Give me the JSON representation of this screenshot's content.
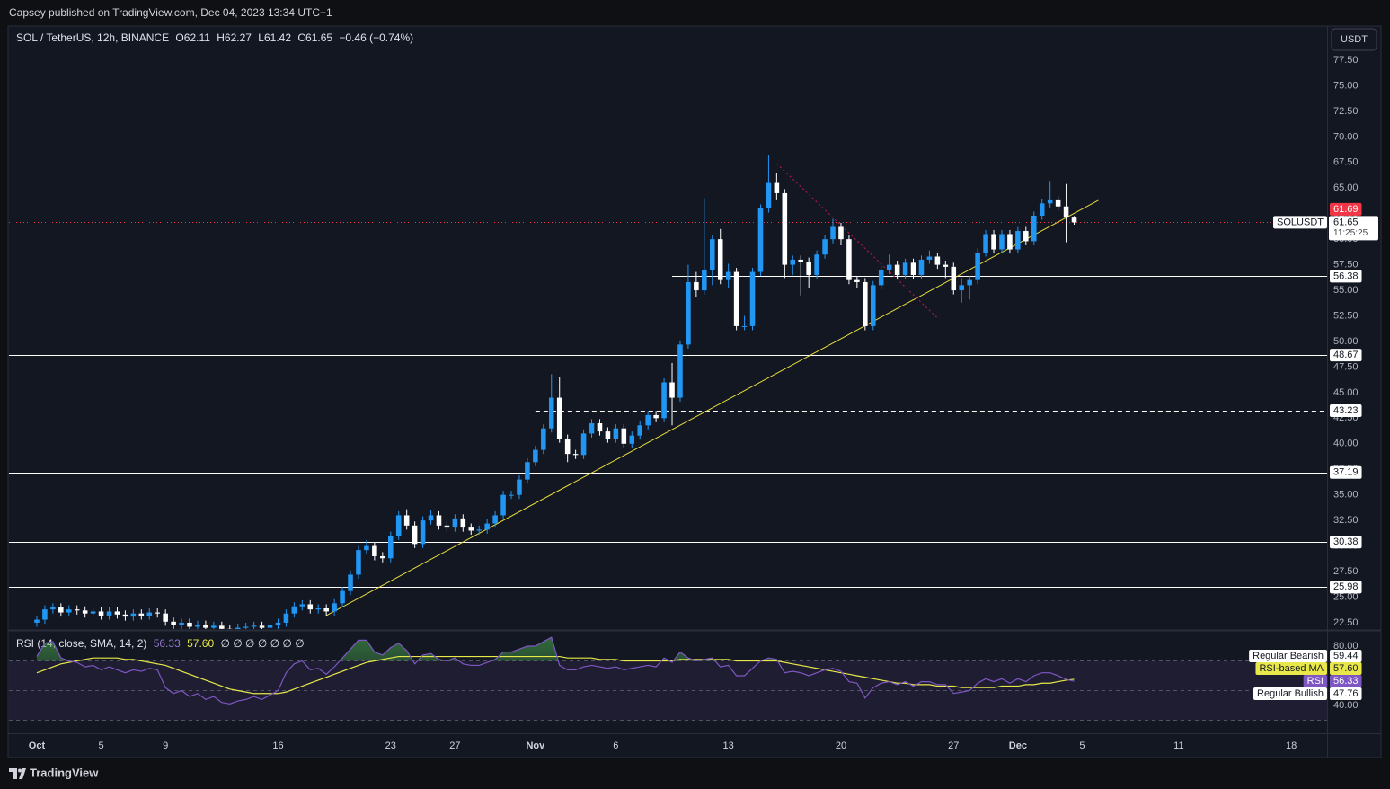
{
  "header": {
    "publisher_line": "Capsey published on TradingView.com, Dec 04, 2023 13:34 UTC+1",
    "brand": "TradingView"
  },
  "chart_data": [
    {
      "type": "candlestick",
      "symbol": "SOL / TetherUS, 12h, BINANCE",
      "ohlc_letters": [
        "O",
        "H",
        "L",
        "C"
      ],
      "change": "−0.46 (−0.74%)",
      "currency": "USDT",
      "symbol_label": "SOLUSDT",
      "countdown": "11:25:25",
      "up_color": "#2196f3",
      "down_color": "#ffffff",
      "last_price_color": "#f23645",
      "open": [
        22.5,
        22.8,
        23.8,
        24,
        23.5,
        23.8,
        23.7,
        23.4,
        23.6,
        23.2,
        23.6,
        23.3,
        23.1,
        23.4,
        23.2,
        23.5,
        23.4,
        22.6,
        22.3,
        22.5,
        22.1,
        22.3,
        22,
        22.2,
        21.9,
        21.8,
        22,
        22.1,
        22.2,
        22,
        22.3,
        22.5,
        23.4,
        24.1,
        24.3,
        23.8,
        23.9,
        23.6,
        24.4,
        25.6,
        27.2,
        29.6,
        30,
        29,
        28.8,
        31,
        33,
        32,
        30.2,
        32.5,
        33,
        32,
        31.8,
        32.7,
        31.8,
        31.5,
        31.6,
        32.2,
        33,
        35,
        35,
        36.5,
        38.2,
        39.4,
        41.5,
        44.5,
        40.5,
        39,
        38.9,
        41,
        42,
        41.2,
        40.5,
        41.5,
        40,
        40.8,
        41.8,
        42.8,
        42.5,
        46,
        44.5,
        49.7,
        55.8,
        55,
        57,
        60,
        56,
        56.8,
        51.5,
        51.5,
        56.8,
        63,
        65.5,
        64.5,
        57.5,
        58,
        57.8,
        56.5,
        58.5,
        60,
        61.2,
        60,
        56,
        55.8,
        51.5,
        55.5,
        57,
        57.5,
        56.5,
        57.7,
        56.5,
        58,
        58.3,
        57.5,
        57.3,
        55,
        55.5,
        56,
        58.7,
        60.5,
        59,
        60.5,
        59,
        60.8,
        59.8,
        62.3,
        63.5,
        63.8,
        63.2,
        62.11
      ],
      "high": [
        23.2,
        24.2,
        24.4,
        24.4,
        24.2,
        24.2,
        24.1,
        24,
        24,
        24,
        24,
        23.7,
        23.8,
        23.8,
        23.9,
        23.9,
        23.8,
        23,
        22.9,
        22.9,
        22.7,
        22.7,
        22.6,
        22.6,
        22.3,
        22.4,
        22.5,
        22.6,
        22.6,
        22.7,
        22.9,
        23.8,
        24.5,
        24.7,
        24.7,
        24.3,
        24.3,
        24.8,
        26,
        27.6,
        30,
        30.6,
        30.4,
        29.4,
        31.4,
        33.4,
        33.6,
        32.4,
        32.9,
        33.5,
        33.4,
        32.4,
        33.1,
        33.1,
        32.2,
        32,
        32.6,
        33.4,
        35.4,
        35.4,
        36.9,
        38.6,
        39.8,
        41.9,
        46.8,
        46.5,
        40.9,
        39.4,
        41.4,
        42.4,
        42.4,
        41.6,
        41.9,
        41.9,
        41.2,
        42.2,
        43.2,
        43.2,
        46.4,
        47.9,
        50.1,
        57.5,
        56.8,
        64,
        60.4,
        61,
        57.6,
        57.2,
        52.5,
        57.2,
        63.4,
        68.2,
        66.5,
        64.9,
        58.4,
        58.4,
        58.2,
        58.9,
        60.4,
        62,
        61.6,
        60.4,
        56.4,
        56.2,
        55.9,
        57.4,
        58.5,
        57.9,
        58.1,
        58.1,
        58.4,
        58.9,
        58.7,
        57.9,
        57.7,
        56.2,
        56.4,
        59.1,
        60.9,
        60.9,
        60.9,
        60.9,
        61.2,
        61.2,
        62.7,
        63.9,
        65.7,
        64.2,
        65.4,
        62.27
      ],
      "low": [
        22.1,
        22.4,
        23.4,
        23.1,
        23.1,
        23.3,
        23,
        23,
        22.8,
        22.8,
        22.9,
        22.7,
        22.7,
        22.8,
        22.8,
        23,
        22.2,
        21.9,
        21.9,
        21.7,
        21.7,
        21.6,
        21.6,
        21.5,
        21.4,
        21.4,
        21.6,
        21.7,
        21.6,
        21.6,
        21.9,
        22.1,
        23,
        23.7,
        23.4,
        23.4,
        23.2,
        23.2,
        24,
        25.2,
        26.8,
        29.2,
        28.6,
        28.4,
        28.4,
        30.6,
        31.6,
        29.8,
        29.8,
        32.1,
        31.6,
        31.4,
        31.4,
        31.4,
        31.1,
        31.1,
        31.2,
        31.8,
        32.6,
        34.6,
        34.6,
        36.1,
        37.8,
        39,
        41.1,
        40.1,
        38.2,
        38.5,
        38.5,
        40.6,
        40.8,
        40.1,
        40.1,
        39.6,
        39.6,
        40.4,
        41.4,
        42.1,
        42.1,
        41.8,
        44.1,
        49.3,
        54.3,
        54.6,
        55.5,
        55.6,
        55.2,
        51.1,
        51.1,
        51.1,
        56.4,
        62.6,
        63.8,
        56.2,
        56.5,
        54.5,
        55.2,
        56.1,
        58.1,
        59.6,
        59.4,
        55.6,
        55.2,
        51.1,
        51.1,
        55.1,
        56.6,
        56.1,
        56.1,
        56.1,
        56.1,
        57.6,
        57.1,
        56.2,
        54.6,
        53.8,
        54.1,
        55.6,
        58.3,
        58.6,
        58.6,
        58.6,
        58.6,
        59.4,
        59.4,
        61.9,
        63.1,
        62.8,
        59.7,
        61.42
      ],
      "close": [
        22.8,
        23.8,
        24,
        23.5,
        23.8,
        23.7,
        23.4,
        23.6,
        23.2,
        23.6,
        23.3,
        23.1,
        23.4,
        23.2,
        23.5,
        23.4,
        22.6,
        22.3,
        22.5,
        22.1,
        22.3,
        22,
        22.2,
        21.9,
        21.8,
        22,
        22.1,
        22.2,
        22,
        22.3,
        22.5,
        23.4,
        24.1,
        24.3,
        23.8,
        23.9,
        23.6,
        24.4,
        25.6,
        27.2,
        29.6,
        30,
        29,
        28.8,
        31,
        33,
        32,
        30.2,
        32.5,
        33,
        32,
        31.8,
        32.7,
        31.8,
        31.5,
        31.6,
        32.2,
        33,
        35,
        35,
        36.5,
        38.2,
        39.4,
        41.5,
        44.5,
        40.5,
        39,
        38.9,
        41,
        42,
        41.2,
        40.5,
        41.5,
        40,
        40.8,
        41.8,
        42.8,
        42.5,
        46,
        44.5,
        49.7,
        55.8,
        55,
        57,
        60,
        56,
        56.8,
        51.5,
        51.5,
        56.8,
        63,
        65.5,
        64.5,
        57.5,
        58,
        57.8,
        56.5,
        58.5,
        60,
        61.2,
        60,
        56,
        55.8,
        51.5,
        55.5,
        57,
        57.5,
        56.5,
        57.7,
        56.5,
        58,
        58.3,
        57.5,
        57.3,
        55,
        55.5,
        56,
        58.7,
        60.5,
        59,
        60.5,
        59,
        60.8,
        59.8,
        62.3,
        63.5,
        63.8,
        63.2,
        62.11,
        61.65
      ],
      "xlim": [
        -3.46,
        160.45
      ],
      "xticks": [
        {
          "value": 0,
          "label": "Oct"
        },
        {
          "value": 8,
          "label": "5"
        },
        {
          "value": 16,
          "label": "9"
        },
        {
          "value": 30,
          "label": "16"
        },
        {
          "value": 44,
          "label": "23"
        },
        {
          "value": 52,
          "label": "27"
        },
        {
          "value": 62,
          "label": "Nov"
        },
        {
          "value": 72,
          "label": "6"
        },
        {
          "value": 86,
          "label": "13"
        },
        {
          "value": 100,
          "label": "20"
        },
        {
          "value": 114,
          "label": "27"
        },
        {
          "value": 122,
          "label": "Dec"
        },
        {
          "value": 130,
          "label": "5"
        },
        {
          "value": 142,
          "label": "11"
        },
        {
          "value": 156,
          "label": "18"
        }
      ],
      "ylim": [
        21.88,
        80.75
      ],
      "yticks": [
        {
          "value": 22.5,
          "label": "22.50"
        },
        {
          "value": 25,
          "label": "25.00"
        },
        {
          "value": 27.5,
          "label": "27.50"
        },
        {
          "value": 30,
          "label": "30.00"
        },
        {
          "value": 32.5,
          "label": "32.50"
        },
        {
          "value": 35,
          "label": "35.00"
        },
        {
          "value": 37.5,
          "label": "37.50"
        },
        {
          "value": 40,
          "label": "40.00"
        },
        {
          "value": 42.5,
          "label": "42.50"
        },
        {
          "value": 45,
          "label": "45.00"
        },
        {
          "value": 47.5,
          "label": "47.50"
        },
        {
          "value": 50,
          "label": "50.00"
        },
        {
          "value": 52.5,
          "label": "52.50"
        },
        {
          "value": 55,
          "label": "55.00"
        },
        {
          "value": 57.5,
          "label": "57.50"
        },
        {
          "value": 60,
          "label": "60.00"
        },
        {
          "value": 62.5,
          "label": "62.50"
        },
        {
          "value": 65,
          "label": "65.00"
        },
        {
          "value": 67.5,
          "label": "67.50"
        },
        {
          "value": 70,
          "label": "70.00"
        },
        {
          "value": 72.5,
          "label": "72.50"
        },
        {
          "value": 75,
          "label": "75.00"
        },
        {
          "value": 77.5,
          "label": "77.50"
        }
      ],
      "levels": [
        {
          "value": 56.38,
          "from": 79
        },
        {
          "value": 48.67
        },
        {
          "value": 43.23,
          "from": 62,
          "dashed": true
        },
        {
          "value": 37.19
        },
        {
          "value": 30.38
        },
        {
          "value": 25.98
        }
      ],
      "price_marks": [
        {
          "value": 61.69,
          "color": "#f23645"
        }
      ],
      "drawings": [
        {
          "color": "#e6dc3c",
          "points": [
            [
              36,
              23.2
            ],
            [
              132,
              63.8
            ]
          ]
        },
        {
          "color": "#c2185b",
          "dotted": true,
          "points": [
            [
              92,
              67.4
            ],
            [
              112,
              52.3
            ]
          ]
        }
      ]
    },
    {
      "type": "line",
      "title": "RSI (14, close, SMA, 14, 2)",
      "placeholders": "∅ ∅ ∅ ∅ ∅ ∅ ∅",
      "series": [
        {
          "name": "RSI",
          "color": "#7e57c2",
          "values": [
            73,
            82,
            83,
            72,
            70,
            69,
            66,
            67,
            64,
            66,
            64,
            62,
            64,
            63,
            65,
            64,
            52,
            48,
            50,
            46,
            48,
            44,
            46,
            42,
            41,
            43,
            44,
            46,
            44,
            47,
            50,
            62,
            68,
            70,
            64,
            65,
            61,
            66,
            72,
            78,
            84,
            84,
            76,
            74,
            79,
            82,
            77,
            68,
            74,
            75,
            71,
            70,
            72,
            68,
            67,
            67,
            69,
            71,
            76,
            76,
            78,
            80,
            80,
            83,
            86,
            67,
            64,
            64,
            66,
            67,
            66,
            65,
            66,
            64,
            65,
            66,
            67,
            66,
            72,
            69,
            76,
            72,
            70,
            71,
            72,
            66,
            67,
            60,
            60,
            65,
            70,
            72,
            71,
            62,
            63,
            62,
            60,
            62,
            64,
            65,
            63,
            56,
            55,
            45,
            52,
            55,
            56,
            54,
            56,
            53,
            56,
            56,
            54,
            54,
            48,
            49,
            50,
            55,
            58,
            56,
            58,
            55,
            58,
            56,
            60,
            62,
            62,
            60,
            57.5,
            56.33
          ]
        },
        {
          "name": "RSI-based MA",
          "color": "#e8e84a",
          "values": [
            62,
            64,
            66,
            68,
            69,
            70,
            71,
            72,
            72,
            72,
            72,
            71,
            71,
            70,
            69,
            68,
            67,
            65,
            63,
            61,
            59,
            57,
            55,
            53,
            51,
            50,
            49,
            48,
            48,
            48,
            48,
            49,
            51,
            53,
            55,
            57,
            59,
            61,
            63,
            65,
            67,
            69,
            70,
            71,
            72,
            73,
            73,
            73,
            73,
            73,
            73,
            73,
            73,
            73,
            73,
            73,
            73,
            73,
            73,
            73,
            73,
            73,
            73,
            73,
            73,
            73,
            72,
            72,
            72,
            72,
            71,
            71,
            71,
            70,
            70,
            70,
            70,
            70,
            70,
            70,
            71,
            71,
            71,
            71,
            71,
            71,
            71,
            70,
            70,
            70,
            70,
            70,
            70,
            69,
            68,
            67,
            66,
            65,
            64,
            63,
            62,
            61,
            60,
            59,
            58,
            57,
            56,
            55,
            55,
            54,
            54,
            54,
            53,
            53,
            53,
            52,
            52,
            52,
            52,
            52,
            53,
            53,
            53,
            54,
            54,
            55,
            55,
            56,
            57,
            57.6
          ],
          "value_labels": [
            null,
            null,
            null,
            null,
            null,
            null,
            null,
            null,
            null,
            null,
            null,
            null,
            null,
            null,
            null,
            null,
            null,
            null,
            null,
            null,
            null,
            null,
            null,
            null,
            null,
            null,
            null,
            null,
            null,
            null,
            null,
            null,
            null,
            null,
            null,
            null,
            null,
            null,
            null,
            null,
            null,
            null,
            null,
            null,
            null,
            null,
            null,
            null,
            null,
            null,
            null,
            null,
            null,
            null,
            null,
            null,
            null,
            null,
            null,
            null,
            null,
            null,
            null,
            null,
            null,
            null,
            null,
            null,
            null,
            null,
            null,
            null,
            null,
            null,
            null,
            null,
            null,
            null,
            null,
            null,
            null,
            null,
            null,
            null,
            null,
            null,
            null,
            null,
            null,
            null,
            null,
            null,
            null,
            null,
            null,
            null,
            null,
            null,
            null,
            null,
            null,
            null,
            null,
            null,
            null,
            null,
            null,
            null,
            null,
            null,
            null,
            null,
            null,
            null,
            null,
            null,
            null,
            null,
            null,
            null,
            null,
            null,
            null,
            null,
            null,
            null,
            null,
            null,
            null,
            "57.60"
          ]
        }
      ],
      "ylim": [
        21.8,
        89.7
      ],
      "yticks": [
        {
          "value": 80,
          "label": "80.00"
        },
        {
          "value": 40,
          "label": "40.00"
        }
      ],
      "band": [
        30,
        70
      ],
      "midline": 50,
      "overbought_fill": "#2e7d32",
      "divergences": [
        {
          "name": "Regular Bearish",
          "value": 59.44
        },
        {
          "name": "Regular Bullish",
          "value": 47.76
        }
      ]
    }
  ]
}
